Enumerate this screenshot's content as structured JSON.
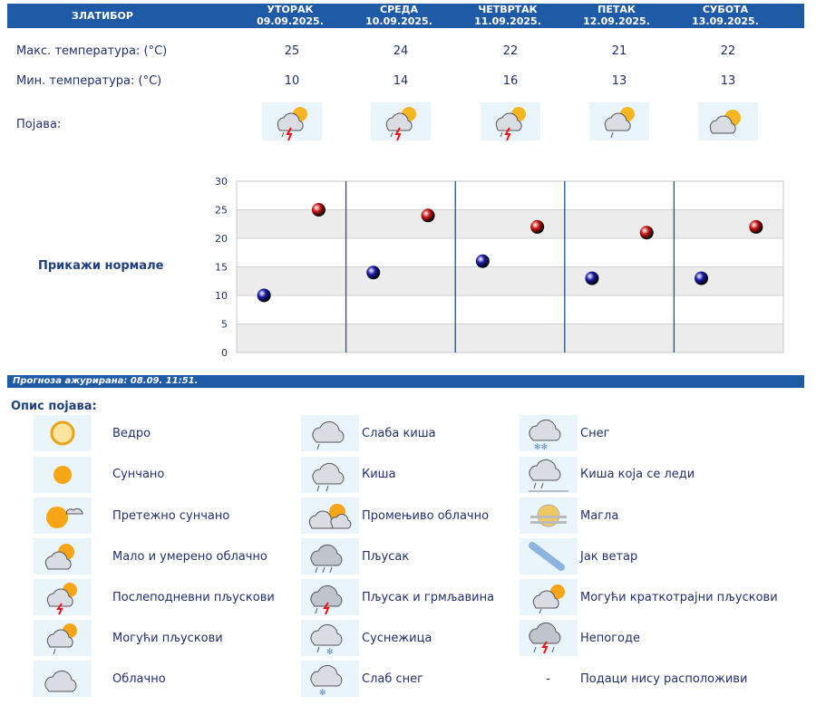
{
  "header": {
    "city": "ЗЛАТИБОР",
    "days": [
      {
        "name": "УТОРАК",
        "date": "09.09.2025."
      },
      {
        "name": "СРЕДА",
        "date": "10.09.2025."
      },
      {
        "name": "ЧЕТВРТАК",
        "date": "11.09.2025."
      },
      {
        "name": "ПЕТАК",
        "date": "12.09.2025."
      },
      {
        "name": "СУБОТА",
        "date": "13.09.2025."
      }
    ]
  },
  "rows": {
    "max_label": "Макс. температура: (°C)",
    "min_label": "Мин. температура: (°C)",
    "phenom_label": "Појава:",
    "max_values": [
      "25",
      "24",
      "22",
      "21",
      "22"
    ],
    "min_values": [
      "10",
      "14",
      "16",
      "13",
      "13"
    ],
    "icons": [
      "afternoon-showers-icon",
      "afternoon-showers-icon",
      "afternoon-showers-icon",
      "possible-showers-icon",
      "partly-cloudy-icon"
    ]
  },
  "normals_link": "Прикажи нормале",
  "chart_data": {
    "type": "scatter",
    "categories": [
      "09.09.2025.",
      "10.09.2025.",
      "11.09.2025.",
      "12.09.2025.",
      "13.09.2025."
    ],
    "series": [
      {
        "values": [
          10,
          14,
          16,
          13,
          13
        ],
        "color": "#1a1aa8"
      },
      {
        "values": [
          25,
          24,
          22,
          21,
          22
        ],
        "color": "#c81414"
      }
    ],
    "yticks": [
      "30",
      "25",
      "20",
      "15",
      "10",
      "5",
      "0"
    ],
    "ylim": [
      0,
      30
    ],
    "grid": true
  },
  "updated": "Прогноза ажурирана:  08.09. 11:51.",
  "legend": {
    "title": "Опис појава:",
    "col1": [
      {
        "icon": "clear-sky-icon",
        "label": "Ведро"
      },
      {
        "icon": "sunny-icon",
        "label": "Сунчано"
      },
      {
        "icon": "mostly-sunny-icon",
        "label": "Претежно сунчано"
      },
      {
        "icon": "partly-cloudy-small-icon",
        "label": "Мало и умерено облачно"
      },
      {
        "icon": "afternoon-showers-icon",
        "label": "Послеподневни пљускови"
      },
      {
        "icon": "possible-showers-icon",
        "label": "Могући пљускови"
      },
      {
        "icon": "cloudy-icon",
        "label": "Облачно"
      }
    ],
    "col2": [
      {
        "icon": "light-rain-icon",
        "label": "Слаба киша"
      },
      {
        "icon": "rain-icon",
        "label": "Киша"
      },
      {
        "icon": "variable-cloudy-icon",
        "label": "Промењиво облачно"
      },
      {
        "icon": "shower-icon",
        "label": "Пљусак"
      },
      {
        "icon": "thunder-shower-icon",
        "label": "Пљусак и грмљавина"
      },
      {
        "icon": "sleet-icon",
        "label": "Суснежица"
      },
      {
        "icon": "light-snow-icon",
        "label": "Слаб снег"
      }
    ],
    "col3": [
      {
        "icon": "snow-icon",
        "label": "Снег"
      },
      {
        "icon": "freezing-rain-icon",
        "label": "Киша која се леди"
      },
      {
        "icon": "fog-icon",
        "label": "Магла"
      },
      {
        "icon": "strong-wind-icon",
        "label": "Јак ветар"
      },
      {
        "icon": "short-showers-icon",
        "label": "Могући краткотрајни пљускови"
      },
      {
        "icon": "storm-icon",
        "label": "Непогоде"
      },
      {
        "icon": "",
        "label": "Подаци нису расположиви",
        "dash": "-"
      }
    ]
  }
}
